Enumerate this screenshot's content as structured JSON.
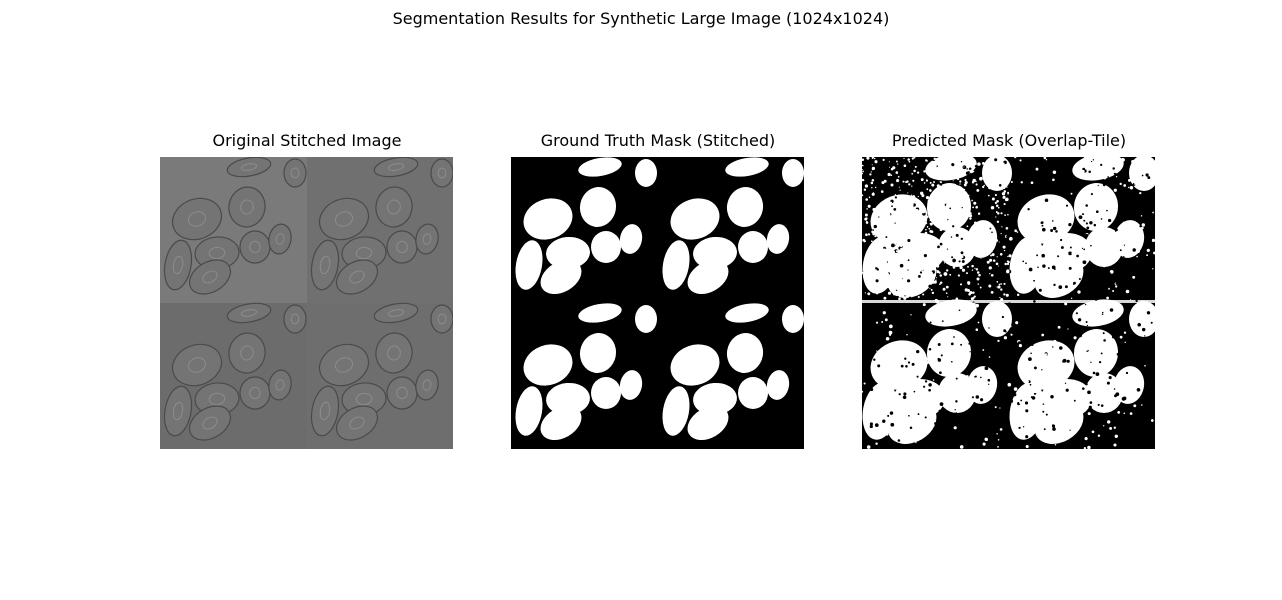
{
  "figure": {
    "title": "Segmentation Results for Synthetic Large Image (1024x1024)"
  },
  "panels": [
    {
      "title": "Original Stitched Image",
      "kind": "grayscale microscopy (phase contrast cells), 2x2 tiled"
    },
    {
      "title": "Ground Truth Mask (Stitched)",
      "kind": "binary mask, white cells on black"
    },
    {
      "title": "Predicted Mask (Overlap-Tile)",
      "kind": "noisy binary mask, white on black"
    }
  ],
  "colors": {
    "background": "#ffffff",
    "image_gray": "#6f6f6f",
    "image_gray_tile": "#777777",
    "mask_fg": "#ffffff",
    "mask_bg": "#000000"
  }
}
